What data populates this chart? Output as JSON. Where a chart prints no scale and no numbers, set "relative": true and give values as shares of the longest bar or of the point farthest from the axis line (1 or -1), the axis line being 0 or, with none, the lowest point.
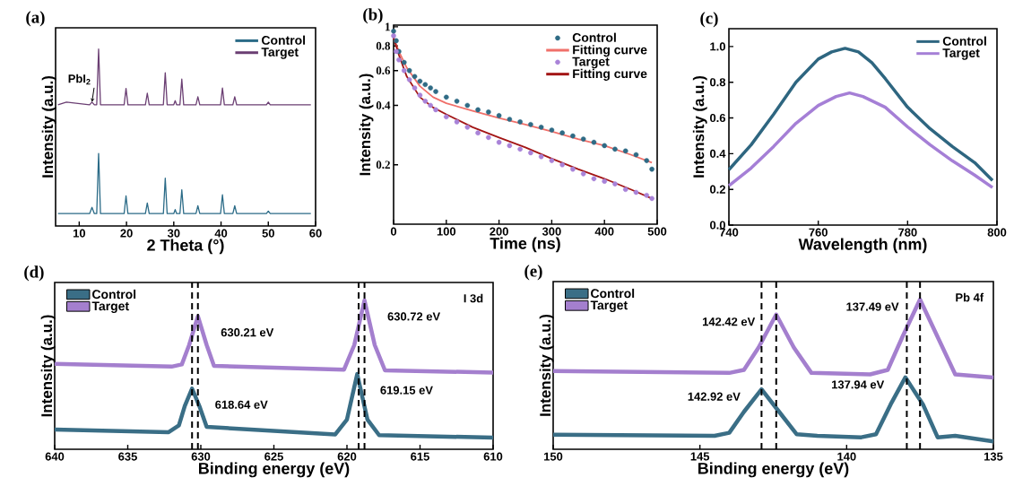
{
  "chart_data": [
    {
      "type": "line",
      "title": "(a)",
      "xlabel": "2 Theta (°)",
      "ylabel": "Intensity (a.u.)",
      "relative": true,
      "xlim": [
        5,
        60
      ],
      "xticks": [
        10,
        20,
        30,
        40,
        50,
        60
      ],
      "legend": "top right",
      "x": [
        5.5,
        7.3,
        12.2,
        12.7,
        13.2,
        13.7,
        14.1,
        14.5,
        19.5,
        19.9,
        20.3,
        24.0,
        24.4,
        24.8,
        27.8,
        28.2,
        28.6,
        30.0,
        30.3,
        30.6,
        31.3,
        31.7,
        32.1,
        34.7,
        35.1,
        35.5,
        39.9,
        40.3,
        40.7,
        42.5,
        42.9,
        43.3,
        49.6,
        50,
        50.4,
        59
      ],
      "series": [
        {
          "name": "Control",
          "color": "#2b6b87",
          "values": [
            0.07,
            0.07,
            0.07,
            0.105,
            0.07,
            0.07,
            0.41,
            0.07,
            0.07,
            0.17,
            0.07,
            0.07,
            0.13,
            0.07,
            0.07,
            0.27,
            0.07,
            0.07,
            0.093,
            0.07,
            0.07,
            0.205,
            0.07,
            0.07,
            0.114,
            0.07,
            0.07,
            0.176,
            0.07,
            0.07,
            0.114,
            0.07,
            0.07,
            0.084,
            0.07,
            0.07
          ]
        },
        {
          "name": "Target",
          "color": "#6b3f73",
          "values": [
            0.685,
            0.7,
            0.685,
            0.7,
            0.685,
            0.685,
            1.0,
            0.685,
            0.685,
            0.777,
            0.685,
            0.685,
            0.75,
            0.685,
            0.685,
            0.866,
            0.685,
            0.685,
            0.708,
            0.685,
            0.685,
            0.83,
            0.685,
            0.685,
            0.73,
            0.685,
            0.685,
            0.78,
            0.685,
            0.685,
            0.73,
            0.685,
            0.685,
            0.7,
            0.685,
            0.685
          ]
        }
      ],
      "annotations": [
        {
          "text": "PbI$_{2}$",
          "x": 12.7,
          "y": 0.7
        }
      ]
    },
    {
      "type": "scatter",
      "title": "(b)",
      "xlabel": "Time (ns)",
      "ylabel": "Intensity (a.u.)",
      "log": "y",
      "xlim": [
        0,
        500
      ],
      "xticks": [
        0,
        100,
        200,
        300,
        400,
        500
      ],
      "ylim": [
        0.1,
        1.02
      ],
      "yticks": [
        0.2,
        0.4,
        0.6,
        0.8,
        1
      ],
      "legend": "top right",
      "series": [
        {
          "name": "Control",
          "type": "scatter",
          "marker": "circle",
          "color": "#2f6b85",
          "x": [
            0,
            5,
            10,
            20,
            30,
            40,
            50,
            60,
            70,
            80,
            100,
            120,
            140,
            160,
            180,
            200,
            220,
            240,
            260,
            280,
            300,
            320,
            340,
            360,
            380,
            400,
            420,
            440,
            460,
            480,
            490
          ],
          "values": [
            0.95,
            0.85,
            0.75,
            0.66,
            0.6,
            0.56,
            0.53,
            0.51,
            0.49,
            0.47,
            0.44,
            0.42,
            0.4,
            0.38,
            0.37,
            0.355,
            0.34,
            0.33,
            0.32,
            0.31,
            0.3,
            0.29,
            0.28,
            0.27,
            0.26,
            0.25,
            0.24,
            0.235,
            0.225,
            0.21,
            0.19
          ]
        },
        {
          "name": "Fitting curve",
          "type": "line",
          "marker": "none",
          "color": "#f0706a",
          "x": [
            0,
            10,
            25,
            50,
            75,
            100,
            150,
            200,
            250,
            300,
            350,
            400,
            450,
            490
          ],
          "values": [
            0.88,
            0.75,
            0.62,
            0.5,
            0.44,
            0.41,
            0.375,
            0.345,
            0.32,
            0.295,
            0.27,
            0.25,
            0.225,
            0.205
          ]
        },
        {
          "name": "Target",
          "type": "scatter",
          "marker": "circle",
          "color": "#a983d8",
          "x": [
            0,
            5,
            10,
            20,
            30,
            40,
            50,
            60,
            70,
            80,
            100,
            120,
            140,
            160,
            180,
            200,
            220,
            240,
            260,
            280,
            300,
            320,
            340,
            360,
            380,
            400,
            420,
            440,
            460,
            480,
            490
          ],
          "values": [
            0.9,
            0.75,
            0.68,
            0.6,
            0.54,
            0.49,
            0.45,
            0.42,
            0.4,
            0.38,
            0.35,
            0.33,
            0.31,
            0.29,
            0.275,
            0.26,
            0.25,
            0.24,
            0.23,
            0.22,
            0.21,
            0.2,
            0.19,
            0.18,
            0.17,
            0.165,
            0.16,
            0.15,
            0.145,
            0.14,
            0.135
          ]
        },
        {
          "name": "Fitting curve",
          "type": "line",
          "marker": "none",
          "color": "#a31515",
          "x": [
            0,
            10,
            25,
            50,
            75,
            100,
            150,
            200,
            250,
            300,
            350,
            400,
            450,
            490
          ],
          "values": [
            0.88,
            0.72,
            0.56,
            0.44,
            0.39,
            0.36,
            0.31,
            0.275,
            0.245,
            0.215,
            0.19,
            0.17,
            0.15,
            0.135
          ]
        }
      ]
    },
    {
      "type": "line",
      "title": "(c)",
      "xlabel": "Wavelength (nm)",
      "ylabel": "Intensity (a.u.)",
      "xlim": [
        740,
        800
      ],
      "xticks": [
        740,
        760,
        780,
        800
      ],
      "ylim": [
        0,
        1.1
      ],
      "yticks": [
        {
          "value": 0,
          "label": "0.0"
        },
        0.2,
        0.4,
        0.6,
        0.8,
        {
          "value": 1,
          "label": "1.0"
        }
      ],
      "legend": "top right",
      "series": [
        {
          "name": "Control",
          "color": "#2e6680",
          "x": [
            740,
            745,
            750,
            755,
            760,
            763,
            766,
            769,
            772,
            775,
            780,
            785,
            790,
            795,
            799
          ],
          "values": [
            0.31,
            0.45,
            0.62,
            0.8,
            0.93,
            0.97,
            0.99,
            0.97,
            0.91,
            0.82,
            0.66,
            0.54,
            0.44,
            0.35,
            0.25
          ]
        },
        {
          "name": "Target",
          "color": "#a57fd6",
          "x": [
            740,
            745,
            750,
            755,
            760,
            764,
            767,
            770,
            775,
            780,
            785,
            790,
            795,
            799
          ],
          "values": [
            0.22,
            0.32,
            0.44,
            0.57,
            0.67,
            0.72,
            0.74,
            0.72,
            0.66,
            0.55,
            0.45,
            0.36,
            0.28,
            0.21
          ]
        }
      ]
    },
    {
      "type": "line",
      "title": "(d)",
      "xlabel": "Binding energy (eV)",
      "ylabel": "Intensity (a.u.)",
      "relative": true,
      "xlim": [
        640,
        610
      ],
      "xticks": [
        640,
        635,
        630,
        625,
        620,
        615,
        610
      ],
      "legend": "top left",
      "series": [
        {
          "name": "Control",
          "color": "#3a6e86",
          "x": [
            640,
            632.2,
            631.5,
            631.1,
            630.6,
            630.1,
            629.6,
            620.8,
            620.0,
            619.3,
            618.6,
            617.8,
            610
          ],
          "values": [
            0.132,
            0.115,
            0.16,
            0.29,
            0.408,
            0.29,
            0.15,
            0.1,
            0.2,
            0.505,
            0.2,
            0.095,
            0.078
          ]
        },
        {
          "name": "Target",
          "color": "#a47fce",
          "x": [
            640,
            632,
            631.3,
            630.8,
            630.2,
            629.6,
            629.1,
            620.2,
            619.5,
            618.8,
            618.1,
            617.4,
            610
          ],
          "values": [
            0.573,
            0.555,
            0.57,
            0.7,
            0.893,
            0.7,
            0.56,
            0.535,
            0.7,
            1.0,
            0.7,
            0.53,
            0.515
          ]
        }
      ],
      "ref_lines": [
        {
          "axis": "x",
          "value": 630.2,
          "line_style": "dashed",
          "color": "#000000"
        },
        {
          "axis": "x",
          "value": 618.8,
          "line_style": "dashed",
          "color": "#000000"
        },
        {
          "axis": "x",
          "value": 630.6,
          "line_style": "dashed",
          "color": "#000000"
        },
        {
          "axis": "x",
          "value": 619.2,
          "line_style": "dashed",
          "color": "#000000"
        }
      ],
      "annotations": [
        "I 3d",
        {
          "text": "630.21 eV",
          "x": 630.2,
          "y": 0.893
        },
        {
          "text": "630.72 eV",
          "x": 618.8,
          "y": 1.0
        },
        {
          "text": "618.64 eV",
          "x": 630.6,
          "y": 0.408
        },
        {
          "text": "619.15 eV",
          "x": 619.3,
          "y": 0.505
        }
      ]
    },
    {
      "type": "line",
      "title": "(e)",
      "xlabel": "Binding energy (eV)",
      "ylabel": "Intensity (a.u.)",
      "relative": true,
      "xlim": [
        150,
        135
      ],
      "xticks": [
        150,
        145,
        140,
        135
      ],
      "legend": "top left",
      "series": [
        {
          "name": "Control",
          "color": "#3a6e86",
          "x": [
            150,
            144.5,
            144.0,
            143.5,
            142.9,
            142.3,
            141.7,
            141.0,
            139.5,
            139.0,
            138.5,
            138.0,
            137.4,
            136.9,
            136.3,
            135
          ],
          "values": [
            0.098,
            0.09,
            0.11,
            0.25,
            0.4,
            0.25,
            0.1,
            0.09,
            0.08,
            0.1,
            0.3,
            0.48,
            0.3,
            0.08,
            0.09,
            0.053
          ]
        },
        {
          "name": "Target",
          "color": "#a47fce",
          "x": [
            150,
            144,
            143.5,
            143.0,
            142.4,
            141.8,
            141.2,
            139.2,
            138.6,
            138.1,
            137.5,
            136.9,
            136.3,
            135
          ],
          "values": [
            0.523,
            0.51,
            0.53,
            0.68,
            0.9,
            0.68,
            0.51,
            0.5,
            0.53,
            0.75,
            1.0,
            0.75,
            0.5,
            0.479
          ]
        }
      ],
      "ref_lines": [
        {
          "axis": "x",
          "value": 142.4,
          "line_style": "dashed",
          "color": "#000000"
        },
        {
          "axis": "x",
          "value": 137.5,
          "line_style": "dashed",
          "color": "#000000"
        },
        {
          "axis": "x",
          "value": 142.9,
          "line_style": "dashed",
          "color": "#000000"
        },
        {
          "axis": "x",
          "value": 137.95,
          "line_style": "dashed",
          "color": "#000000"
        }
      ],
      "annotations": [
        "Pb 4f",
        {
          "text": "142.42 eV",
          "x": 142.4,
          "y": 0.9
        },
        {
          "text": "137.49 eV",
          "x": 137.5,
          "y": 1.0
        },
        {
          "text": "142.92 eV",
          "x": 142.9,
          "y": 0.4
        },
        {
          "text": "137.94 eV",
          "x": 138.0,
          "y": 0.48
        }
      ]
    }
  ]
}
